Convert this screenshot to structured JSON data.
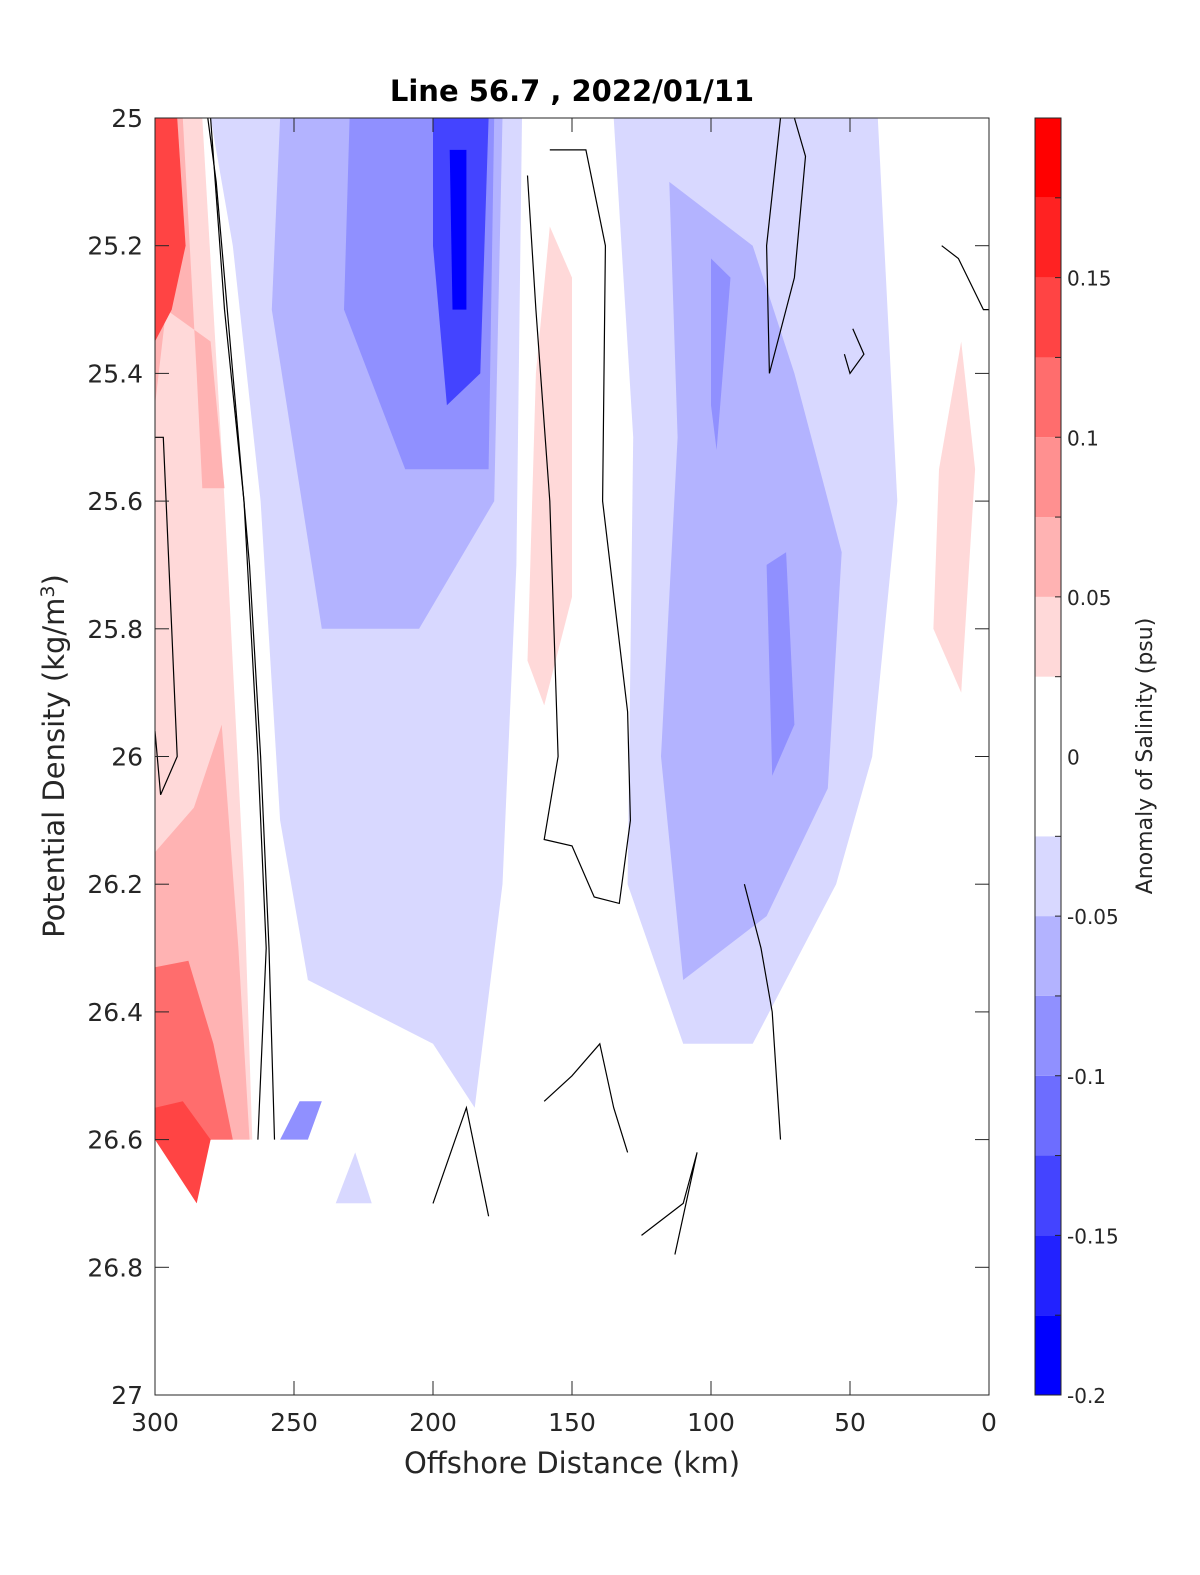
{
  "chart_data": {
    "type": "heatmap",
    "title": "Line 56.7 , 2022/01/11",
    "xlabel": "Offshore Distance (km)",
    "ylabel_main": "Potential Density (kg/m",
    "ylabel_sup": "3",
    "ylabel_close": ")",
    "xlim": [
      300,
      0
    ],
    "ylim": [
      25,
      27
    ],
    "x_ticks": [
      300,
      250,
      200,
      150,
      100,
      50,
      0
    ],
    "x_tick_labels": [
      "300",
      "250",
      "200",
      "150",
      "100",
      "50",
      "0"
    ],
    "y_ticks": [
      25,
      25.2,
      25.4,
      25.6,
      25.8,
      26,
      26.2,
      26.4,
      26.6,
      26.8,
      27
    ],
    "y_tick_labels": [
      "25",
      "25.2",
      "25.4",
      "25.6",
      "25.8",
      "26",
      "26.2",
      "26.4",
      "26.6",
      "26.8",
      "27"
    ],
    "colorbar": {
      "label": "Anomaly of Salinity (psu)",
      "range": [
        -0.2,
        0.2
      ],
      "levels": [
        -0.2,
        -0.175,
        -0.15,
        -0.125,
        -0.1,
        -0.075,
        -0.05,
        -0.025,
        0.025,
        0.05,
        0.075,
        0.1,
        0.125,
        0.15,
        0.175,
        0.2
      ],
      "colors": [
        "#0000ff",
        "#2222ff",
        "#4444ff",
        "#6d6dff",
        "#9090ff",
        "#b3b3ff",
        "#d8d8ff",
        "#ffffff",
        "#ffd9d9",
        "#ffb3b3",
        "#ff9090",
        "#ff6d6d",
        "#ff4444",
        "#ff2222",
        "#ff0000"
      ],
      "ticks": [
        -0.2,
        -0.15,
        -0.1,
        -0.05,
        0,
        0.05,
        0.1,
        0.15
      ],
      "tick_labels": [
        "-0.2",
        "-0.15",
        "-0.1",
        "-0.05",
        "0",
        "0.05",
        "0.1",
        "0.15"
      ]
    },
    "regions": [
      {
        "name": "nearshore-positive-upper",
        "fill": "#ffd9d9",
        "points": [
          [
            300,
            25
          ],
          [
            283,
            25
          ],
          [
            275,
            25.6
          ],
          [
            268,
            26.2
          ],
          [
            265,
            26.6
          ],
          [
            300,
            26.6
          ]
        ]
      },
      {
        "name": "nearshore-positive-mid",
        "fill": "#ffb3b3",
        "points": [
          [
            300,
            25
          ],
          [
            290,
            25
          ],
          [
            285,
            25.4
          ],
          [
            283,
            25.58
          ],
          [
            275,
            25.58
          ],
          [
            280,
            25.35
          ],
          [
            296,
            25.3
          ],
          [
            300,
            25.45
          ]
        ]
      },
      {
        "name": "nearshore-positive-lower",
        "fill": "#ffb3b3",
        "points": [
          [
            300,
            26.15
          ],
          [
            286,
            26.08
          ],
          [
            276,
            25.95
          ],
          [
            270,
            26.3
          ],
          [
            266,
            26.6
          ],
          [
            300,
            26.6
          ]
        ]
      },
      {
        "name": "nearshore-positive-deep",
        "fill": "#ff6d6d",
        "points": [
          [
            300,
            26.33
          ],
          [
            288,
            26.32
          ],
          [
            279,
            26.45
          ],
          [
            272,
            26.6
          ],
          [
            300,
            26.6
          ]
        ]
      },
      {
        "name": "nearshore-positive-core",
        "fill": "#ff4444",
        "points": [
          [
            300,
            25
          ],
          [
            292,
            25
          ],
          [
            289,
            25.2
          ],
          [
            294,
            25.3
          ],
          [
            300,
            25.35
          ]
        ]
      },
      {
        "name": "nearshore-positive-bottom",
        "fill": "#ff4444",
        "points": [
          [
            300,
            26.55
          ],
          [
            290,
            26.54
          ],
          [
            280,
            26.6
          ],
          [
            285,
            26.7
          ],
          [
            300,
            26.6
          ]
        ]
      },
      {
        "name": "offshore-negative-main",
        "fill": "#d8d8ff",
        "points": [
          [
            280,
            25
          ],
          [
            168,
            25
          ],
          [
            170,
            25.7
          ],
          [
            175,
            26.2
          ],
          [
            185,
            26.55
          ],
          [
            200,
            26.45
          ],
          [
            245,
            26.35
          ],
          [
            255,
            26.1
          ],
          [
            262,
            25.6
          ],
          [
            272,
            25.2
          ]
        ]
      },
      {
        "name": "offshore-negative-main-core",
        "fill": "#b3b3ff",
        "points": [
          [
            255,
            25
          ],
          [
            175,
            25
          ],
          [
            178,
            25.6
          ],
          [
            205,
            25.8
          ],
          [
            240,
            25.8
          ],
          [
            258,
            25.3
          ]
        ]
      },
      {
        "name": "offshore-negative-mid-core",
        "fill": "#9090ff",
        "points": [
          [
            230,
            25
          ],
          [
            178,
            25
          ],
          [
            180,
            25.55
          ],
          [
            210,
            25.55
          ],
          [
            232,
            25.3
          ]
        ]
      },
      {
        "name": "offshore-negative-deep-core",
        "fill": "#4444ff",
        "points": [
          [
            200,
            25
          ],
          [
            180,
            25
          ],
          [
            183,
            25.4
          ],
          [
            195,
            25.45
          ],
          [
            200,
            25.2
          ]
        ]
      },
      {
        "name": "offshore-negative-inner-core",
        "fill": "#0000ff",
        "points": [
          [
            194,
            25.05
          ],
          [
            188,
            25.05
          ],
          [
            188,
            25.3
          ],
          [
            193,
            25.3
          ]
        ]
      },
      {
        "name": "mid-positive-patch",
        "fill": "#ffd9d9",
        "points": [
          [
            158,
            25.17
          ],
          [
            150,
            25.25
          ],
          [
            150,
            25.75
          ],
          [
            160,
            25.92
          ],
          [
            166,
            25.85
          ],
          [
            163,
            25.4
          ]
        ]
      },
      {
        "name": "shelf-negative-main",
        "fill": "#d8d8ff",
        "points": [
          [
            135,
            25
          ],
          [
            40,
            25
          ],
          [
            33,
            25.6
          ],
          [
            42,
            26
          ],
          [
            55,
            26.2
          ],
          [
            85,
            26.45
          ],
          [
            110,
            26.45
          ],
          [
            130,
            26.2
          ],
          [
            128,
            25.5
          ]
        ]
      },
      {
        "name": "shelf-negative-core",
        "fill": "#b3b3ff",
        "points": [
          [
            115,
            25.1
          ],
          [
            85,
            25.2
          ],
          [
            70,
            25.4
          ],
          [
            53,
            25.68
          ],
          [
            58,
            26.05
          ],
          [
            80,
            26.25
          ],
          [
            110,
            26.35
          ],
          [
            118,
            26
          ],
          [
            112,
            25.5
          ]
        ]
      },
      {
        "name": "shelf-negative-inner",
        "fill": "#9090ff",
        "points": [
          [
            100,
            25.22
          ],
          [
            93,
            25.25
          ],
          [
            98,
            25.52
          ],
          [
            100,
            25.45
          ]
        ]
      },
      {
        "name": "shelf-negative-inner2",
        "fill": "#9090ff",
        "points": [
          [
            80,
            25.7
          ],
          [
            73,
            25.68
          ],
          [
            70,
            25.95
          ],
          [
            78,
            26.03
          ]
        ]
      },
      {
        "name": "coastal-positive-patch",
        "fill": "#ffd9d9",
        "points": [
          [
            10,
            25.35
          ],
          [
            18,
            25.55
          ],
          [
            20,
            25.8
          ],
          [
            10,
            25.9
          ],
          [
            5,
            25.55
          ]
        ]
      },
      {
        "name": "bottom-negative-patch",
        "fill": "#9090ff",
        "points": [
          [
            248,
            26.54
          ],
          [
            240,
            26.54
          ],
          [
            245,
            26.6
          ],
          [
            255,
            26.6
          ]
        ]
      },
      {
        "name": "bottom-negative-patch2",
        "fill": "#d8d8ff",
        "points": [
          [
            228,
            26.62
          ],
          [
            222,
            26.7
          ],
          [
            235,
            26.7
          ]
        ]
      },
      {
        "name": "white-blank-bottom",
        "fill": "#ffffff",
        "points": [
          [
            300,
            26.7
          ],
          [
            0,
            26.7
          ],
          [
            0,
            27
          ],
          [
            300,
            27
          ]
        ]
      }
    ],
    "contours": [
      [
        [
          281,
          25
        ],
        [
          278,
          25.1
        ],
        [
          272,
          25.4
        ],
        [
          266,
          25.7
        ],
        [
          262,
          26
        ],
        [
          259,
          26.3
        ],
        [
          257,
          26.6
        ]
      ],
      [
        [
          263,
          26.6
        ],
        [
          260,
          26.3
        ],
        [
          263,
          26
        ],
        [
          268,
          25.6
        ],
        [
          275,
          25.3
        ],
        [
          280,
          25
        ]
      ],
      [
        [
          300,
          25.5
        ],
        [
          297,
          25.5
        ],
        [
          294,
          25.8
        ],
        [
          292,
          26
        ],
        [
          298,
          26.06
        ],
        [
          300,
          25.96
        ]
      ],
      [
        [
          166,
          25.09
        ],
        [
          163,
          25.3
        ],
        [
          158,
          25.6
        ],
        [
          155,
          26
        ],
        [
          160,
          26.13
        ],
        [
          150,
          26.14
        ],
        [
          142,
          26.22
        ],
        [
          133,
          26.23
        ],
        [
          129,
          26.1
        ],
        [
          130,
          25.93
        ],
        [
          139,
          25.6
        ],
        [
          138,
          25.2
        ],
        [
          145,
          25.05
        ],
        [
          158,
          25.05
        ]
      ],
      [
        [
          75,
          25
        ],
        [
          80,
          25.2
        ],
        [
          79,
          25.4
        ],
        [
          70,
          25.25
        ],
        [
          66,
          25.06
        ],
        [
          70,
          25
        ]
      ],
      [
        [
          52,
          25.37
        ],
        [
          50,
          25.4
        ],
        [
          45,
          25.37
        ],
        [
          49,
          25.33
        ]
      ],
      [
        [
          17,
          25.2
        ],
        [
          11,
          25.22
        ],
        [
          2,
          25.3
        ],
        [
          0,
          25.3
        ]
      ],
      [
        [
          180,
          26.72
        ],
        [
          188,
          26.55
        ],
        [
          192,
          26.6
        ],
        [
          200,
          26.7
        ]
      ],
      [
        [
          125,
          26.75
        ],
        [
          110,
          26.7
        ],
        [
          105,
          26.62
        ],
        [
          113,
          26.78
        ]
      ],
      [
        [
          160,
          26.54
        ],
        [
          150,
          26.5
        ],
        [
          140,
          26.45
        ],
        [
          135,
          26.55
        ],
        [
          130,
          26.62
        ]
      ],
      [
        [
          75,
          26.6
        ],
        [
          78,
          26.4
        ],
        [
          82,
          26.3
        ],
        [
          88,
          26.2
        ]
      ]
    ]
  }
}
